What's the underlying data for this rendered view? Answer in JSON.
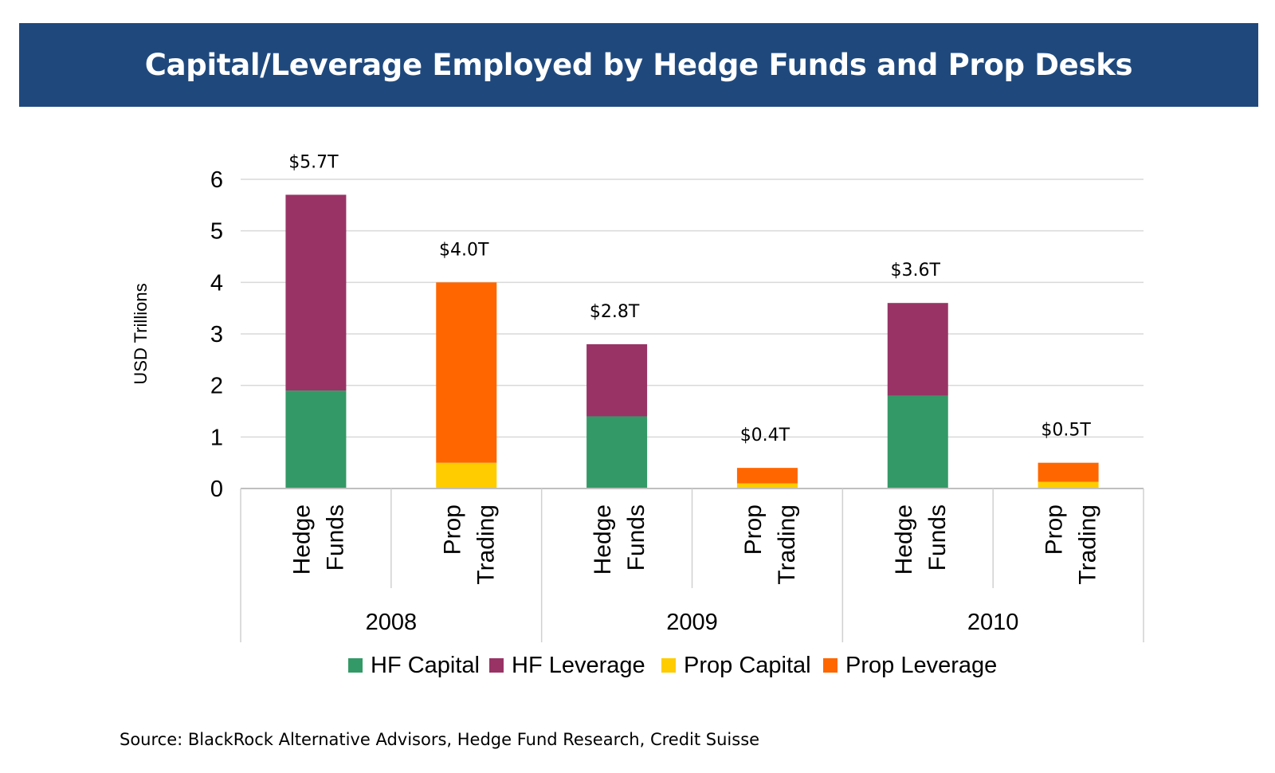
{
  "title": "Capital/Leverage Employed by Hedge Funds and Prop Desks",
  "source": "Source: BlackRock Alternative Advisors, Hedge Fund Research, Credit Suisse",
  "colors": {
    "title_bar": "#1f497d",
    "hf_capital": "#339966",
    "hf_leverage": "#993366",
    "prop_capital": "#ffcc00",
    "prop_leverage": "#ff6600",
    "grid": "#d9d9d9"
  },
  "chart_data": {
    "type": "bar",
    "stacked": true,
    "title": "Capital/Leverage Employed by Hedge Funds and Prop Desks",
    "ylabel": "USD Trillions",
    "ylim": [
      0,
      6
    ],
    "yticks": [
      0,
      1,
      2,
      3,
      4,
      5,
      6
    ],
    "grid": true,
    "legend_position": "bottom",
    "groups": [
      "2008",
      "2009",
      "2010"
    ],
    "categories": [
      {
        "group": "2008",
        "lines": [
          "Hedge",
          "Funds"
        ],
        "total_label": "$5.7T"
      },
      {
        "group": "2008",
        "lines": [
          "Prop",
          "Trading"
        ],
        "total_label": "$4.0T"
      },
      {
        "group": "2009",
        "lines": [
          "Hedge",
          "Funds"
        ],
        "total_label": "$2.8T"
      },
      {
        "group": "2009",
        "lines": [
          "Prop",
          "Trading"
        ],
        "total_label": "$0.4T"
      },
      {
        "group": "2010",
        "lines": [
          "Hedge",
          "Funds"
        ],
        "total_label": "$3.6T"
      },
      {
        "group": "2010",
        "lines": [
          "Prop",
          "Trading"
        ],
        "total_label": "$0.5T"
      }
    ],
    "series": [
      {
        "name": "HF Capital",
        "color": "#339966",
        "values": [
          1.9,
          0,
          1.4,
          0,
          1.8,
          0
        ]
      },
      {
        "name": "HF Leverage",
        "color": "#993366",
        "values": [
          3.8,
          0,
          1.4,
          0,
          1.8,
          0
        ]
      },
      {
        "name": "Prop Capital",
        "color": "#ffcc00",
        "values": [
          0,
          0.5,
          0,
          0.1,
          0,
          0.13
        ]
      },
      {
        "name": "Prop Leverage",
        "color": "#ff6600",
        "values": [
          0,
          3.5,
          0,
          0.3,
          0,
          0.37
        ]
      }
    ]
  }
}
